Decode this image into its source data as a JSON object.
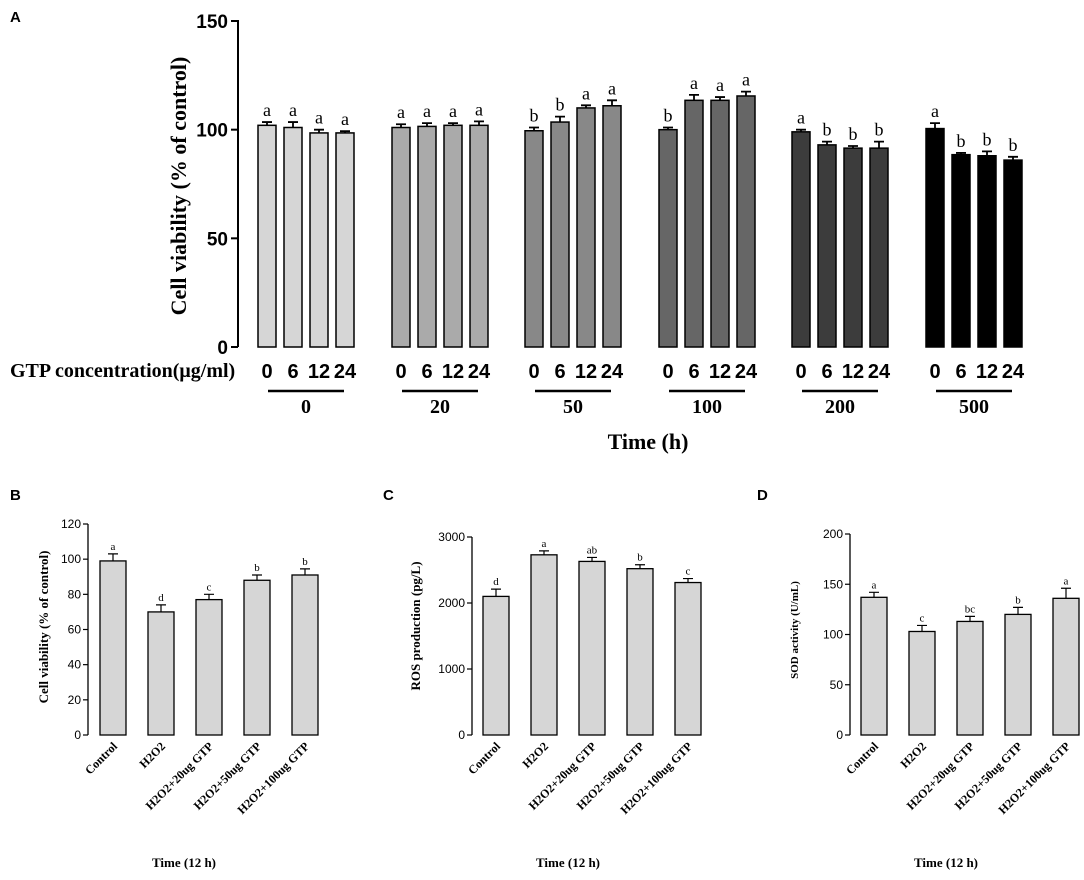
{
  "chart_data": [
    {
      "panel": "A",
      "type": "bar",
      "ylabel": "Cell viability (% of control)",
      "xlabel": "Time (h)",
      "x_row_label": "GTP concentration(μg/ml)",
      "ylim": [
        0,
        150
      ],
      "yticks": [
        0,
        50,
        100,
        150
      ],
      "group_labels": [
        "0",
        "20",
        "50",
        "100",
        "200",
        "500"
      ],
      "subcategories": [
        "0",
        "6",
        "12",
        "24"
      ],
      "group_colors": [
        "#d6d6d6",
        "#aaaaaa",
        "#888888",
        "#666666",
        "#3c3c3c",
        "#000000"
      ],
      "groups": [
        {
          "label": "0",
          "values": [
            102,
            101,
            98.5,
            98.5
          ],
          "errors": [
            1.5,
            2.5,
            1.5,
            0.8
          ],
          "sig": [
            "a",
            "a",
            "a",
            "a"
          ]
        },
        {
          "label": "20",
          "values": [
            101,
            101.5,
            102,
            102
          ],
          "errors": [
            1.5,
            1.5,
            1,
            1.8
          ],
          "sig": [
            "a",
            "a",
            "a",
            "a"
          ]
        },
        {
          "label": "50",
          "values": [
            99.5,
            103.5,
            110,
            111
          ],
          "errors": [
            1.5,
            2.5,
            1.2,
            2.5
          ],
          "sig": [
            "b",
            "b",
            "a",
            "a"
          ]
        },
        {
          "label": "100",
          "values": [
            100,
            113.5,
            113.5,
            115.5
          ],
          "errors": [
            1,
            2.5,
            1.5,
            2
          ],
          "sig": [
            "b",
            "a",
            "a",
            "a"
          ]
        },
        {
          "label": "200",
          "values": [
            99,
            93,
            91.5,
            91.5
          ],
          "errors": [
            1,
            1.5,
            1,
            3
          ],
          "sig": [
            "a",
            "b",
            "b",
            "b"
          ]
        },
        {
          "label": "500",
          "values": [
            100.5,
            88.5,
            88,
            86
          ],
          "errors": [
            2.5,
            0.8,
            2,
            1.5
          ],
          "sig": [
            "a",
            "b",
            "b",
            "b"
          ]
        }
      ]
    },
    {
      "panel": "B",
      "type": "bar",
      "ylabel": "Cell viability (% of control)",
      "xlabel": "Time (12 h)",
      "ylim": [
        0,
        120
      ],
      "yticks": [
        0,
        20,
        40,
        60,
        80,
        100,
        120
      ],
      "categories": [
        "Control",
        "H2O2",
        "H2O2+20ug GTP",
        "H2O2+50ug GTP",
        "H2O2+100ug GTP"
      ],
      "values": [
        99,
        70,
        77,
        88,
        91
      ],
      "errors": [
        4,
        4,
        3,
        3,
        3.5
      ],
      "sig": [
        "a",
        "d",
        "c",
        "b",
        "b"
      ]
    },
    {
      "panel": "C",
      "type": "bar",
      "ylabel": "ROS production (pg/L)",
      "xlabel": "Time (12 h)",
      "ylim": [
        0,
        3000
      ],
      "yticks": [
        0,
        1000,
        2000,
        3000
      ],
      "categories": [
        "Control",
        "H2O2",
        "H2O2+20ug GTP",
        "H2O2+50ug GTP",
        "H2O2+100ug GTP"
      ],
      "values": [
        2100,
        2730,
        2630,
        2520,
        2310
      ],
      "errors": [
        110,
        60,
        60,
        60,
        60
      ],
      "sig": [
        "d",
        "a",
        "ab",
        "b",
        "c"
      ]
    },
    {
      "panel": "D",
      "type": "bar",
      "ylabel": "SOD activity (U/mL)",
      "xlabel": "Time (12 h)",
      "ylim": [
        0,
        200
      ],
      "yticks": [
        0,
        50,
        100,
        150,
        200
      ],
      "categories": [
        "Control",
        "H2O2",
        "H2O2+20ug GTP",
        "H2O2+50ug GTP",
        "H2O2+100ug GTP"
      ],
      "values": [
        137,
        103,
        113,
        120,
        136
      ],
      "errors": [
        5,
        6,
        5,
        7,
        10
      ],
      "sig": [
        "a",
        "c",
        "bc",
        "b",
        "a"
      ]
    }
  ]
}
